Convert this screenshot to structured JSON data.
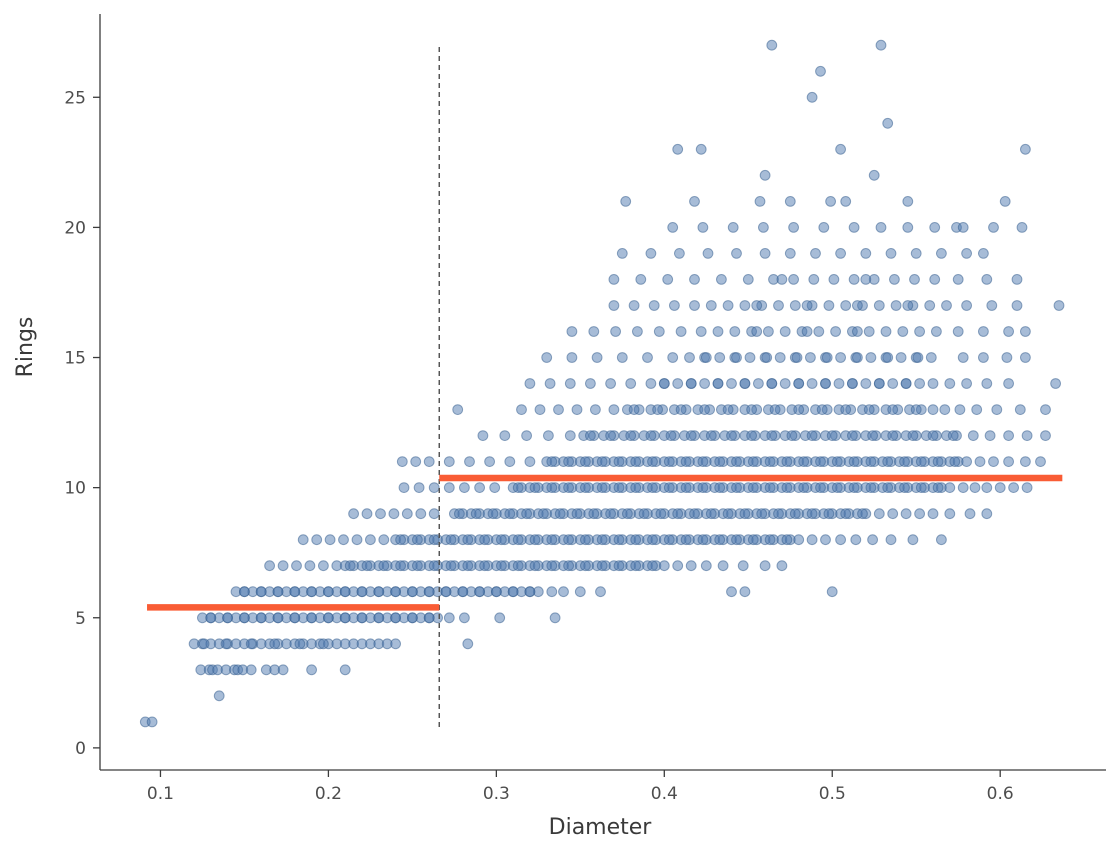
{
  "chart_data": {
    "type": "scatter",
    "xlabel": "Diameter",
    "ylabel": "Rings",
    "x_ticks": [
      0.1,
      0.2,
      0.3,
      0.4,
      0.5,
      0.6
    ],
    "y_ticks": [
      0,
      5,
      10,
      15,
      20,
      25
    ],
    "xlim": [
      0.064,
      0.663
    ],
    "ylim": [
      -0.85,
      28.2
    ],
    "grid": false,
    "legend": false,
    "points_encoding": "points_by_rings maps each integer Rings value (y) to x values (Diameter); an entry is either a single x value or an inclusive run [start, end, step]",
    "points_by_rings": {
      "1": [
        0.091,
        0.095
      ],
      "2": [
        0.135
      ],
      "3": [
        0.124,
        0.129,
        0.131,
        0.134,
        0.139,
        0.144,
        0.146,
        0.149,
        0.154,
        0.163,
        0.168,
        0.173,
        0.19,
        0.21
      ],
      "4": [
        [
          0.12,
          0.24,
          0.005
        ],
        0.126,
        0.139,
        0.154,
        0.168,
        0.183,
        0.197,
        0.283
      ],
      "5": [
        [
          0.125,
          0.265,
          0.005
        ],
        [
          0.13,
          0.26,
          0.01
        ],
        0.272,
        0.281,
        0.302,
        0.335
      ],
      "6": [
        [
          0.145,
          0.325,
          0.005
        ],
        [
          0.15,
          0.32,
          0.01
        ],
        0.333,
        0.34,
        0.35,
        0.362,
        0.44,
        0.448,
        0.5
      ],
      "7": [
        [
          0.165,
          0.205,
          0.008
        ],
        [
          0.21,
          0.4,
          0.005
        ],
        [
          0.213,
          0.393,
          0.01
        ],
        0.408,
        0.416,
        0.425,
        0.435,
        0.447,
        0.46,
        0.47
      ],
      "8": [
        [
          0.185,
          0.233,
          0.008
        ],
        [
          0.24,
          0.48,
          0.005
        ],
        [
          0.243,
          0.473,
          0.01
        ],
        0.488,
        0.496,
        0.505,
        0.514,
        0.524,
        0.535,
        0.548,
        0.565
      ],
      "9": [
        [
          0.215,
          0.263,
          0.008
        ],
        [
          0.275,
          0.52,
          0.005
        ],
        [
          0.278,
          0.518,
          0.01
        ],
        0.528,
        0.536,
        0.544,
        0.552,
        0.56,
        0.57,
        0.582,
        0.592
      ],
      "10": [
        [
          0.245,
          0.299,
          0.009
        ],
        [
          0.31,
          0.57,
          0.005
        ],
        [
          0.313,
          0.563,
          0.01
        ],
        0.578,
        0.585,
        0.592,
        0.6,
        0.608,
        0.616
      ],
      "11": [
        0.244,
        0.252,
        [
          0.26,
          0.32,
          0.012
        ],
        [
          0.33,
          0.58,
          0.005
        ],
        [
          0.333,
          0.573,
          0.01
        ],
        0.588,
        0.596,
        0.605,
        0.615,
        0.624
      ],
      "12": [
        [
          0.292,
          0.344,
          0.013
        ],
        [
          0.352,
          0.574,
          0.006
        ],
        [
          0.356,
          0.572,
          0.012
        ],
        0.584,
        0.594,
        0.605,
        0.616,
        0.627
      ],
      "13": [
        0.277,
        [
          0.315,
          0.37,
          0.011
        ],
        [
          0.378,
          0.567,
          0.007
        ],
        [
          0.382,
          0.55,
          0.014
        ],
        0.576,
        0.586,
        0.598,
        0.612,
        0.627
      ],
      "14": [
        [
          0.32,
          0.38,
          0.012
        ],
        [
          0.392,
          0.56,
          0.008
        ],
        [
          0.4,
          0.544,
          0.016
        ],
        0.57,
        0.58,
        0.592,
        0.605,
        0.633
      ],
      "15": [
        [
          0.33,
          0.405,
          0.015
        ],
        [
          0.415,
          0.559,
          0.009
        ],
        [
          0.425,
          0.551,
          0.018
        ],
        0.578,
        0.59,
        0.604,
        0.615
      ],
      "16": [
        [
          0.345,
          0.41,
          0.013
        ],
        [
          0.422,
          0.562,
          0.01
        ],
        0.455,
        0.485,
        0.515,
        0.575,
        0.59,
        0.605,
        0.615
      ],
      "17": [
        [
          0.37,
          0.418,
          0.012
        ],
        [
          0.428,
          0.568,
          0.01
        ],
        0.455,
        0.485,
        0.515,
        0.545,
        0.58,
        0.595,
        0.61,
        0.635
      ],
      "18": [
        [
          0.37,
          0.45,
          0.016
        ],
        [
          0.465,
          0.561,
          0.012
        ],
        0.47,
        0.52,
        0.575,
        0.592,
        0.61
      ],
      "19": [
        [
          0.375,
          0.46,
          0.017
        ],
        [
          0.475,
          0.58,
          0.015
        ],
        0.59
      ],
      "20": [
        [
          0.405,
          0.477,
          0.018
        ],
        0.495,
        0.513,
        0.529,
        0.545,
        0.561,
        0.574,
        0.578,
        0.596,
        0.613
      ],
      "21": [
        0.377,
        0.418,
        0.457,
        0.475,
        0.499,
        0.508,
        0.545,
        0.603
      ],
      "22": [
        0.46,
        0.525
      ],
      "23": [
        0.408,
        0.422,
        0.505,
        0.615
      ],
      "24": [
        0.533
      ],
      "25": [
        0.488
      ],
      "26": [
        0.493
      ],
      "27": [
        0.464,
        0.529
      ]
    },
    "split_line": {
      "x": 0.266,
      "y_start": 0.8,
      "y_end": 27.0
    },
    "mean_segments": [
      {
        "x_start": 0.092,
        "x_end": 0.266,
        "y": 5.4
      },
      {
        "x_start": 0.266,
        "x_end": 0.637,
        "y": 10.37
      }
    ]
  },
  "style": {
    "background": "#ffffff",
    "point_fill": "#4f79b0",
    "point_edge": "#39618f",
    "mean_line_color": "#f95c35",
    "split_line_color": "#4d4d4d",
    "axis_color": "#3c3c3c",
    "tick_label_color": "#4d4d4d",
    "axis_label_color": "#3a3a3a"
  }
}
